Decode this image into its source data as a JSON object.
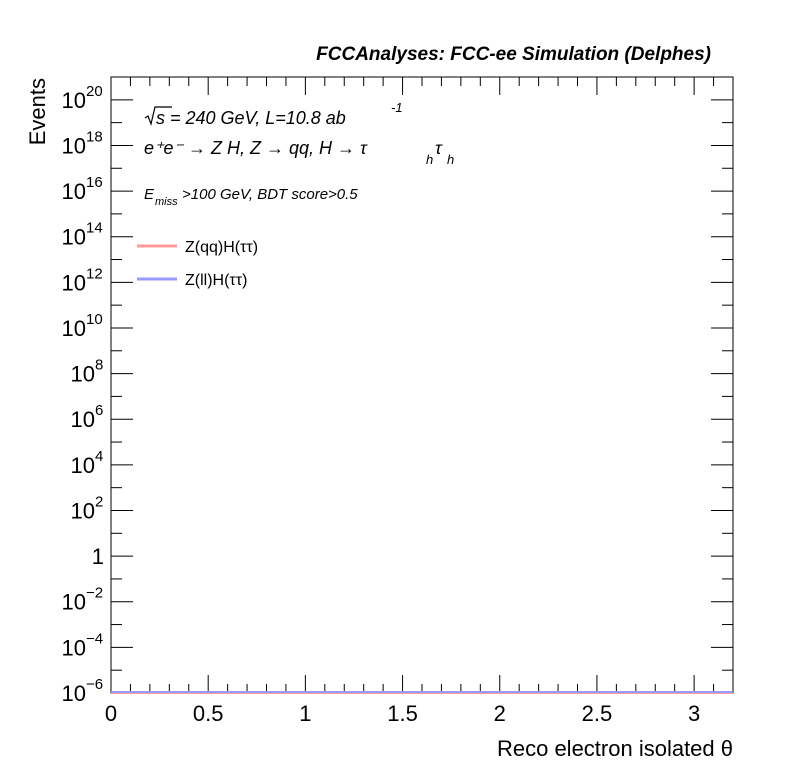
{
  "header": {
    "title": "FCCAnalyses: FCC-ee Simulation (Delphes)"
  },
  "annotations": {
    "line1_sqrt": "s",
    "line1_rest": " = 240 GeV, L=10.8 ab",
    "line1_exp": "-1",
    "line2": "e⁺e⁻ → Z H, Z  → qq, H  → τ",
    "line2_sub1": "h",
    "line2_tau": "τ",
    "line2_sub2": "h",
    "line3_E": "E",
    "line3_sub": "miss",
    "line3_rest": ">100 GeV, BDT score>0.5"
  },
  "chart_data": {
    "type": "line",
    "title": "FCCAnalyses: FCC-ee Simulation (Delphes)",
    "xlabel": "Reco electron isolated θ",
    "ylabel": "Events",
    "xlim": [
      0,
      3.2
    ],
    "ylim": [
      1e-06,
      1e+21
    ],
    "yscale": "log",
    "x_ticks": [
      {
        "v": 0,
        "label": "0"
      },
      {
        "v": 0.5,
        "label": "0.5"
      },
      {
        "v": 1,
        "label": "1"
      },
      {
        "v": 1.5,
        "label": "1.5"
      },
      {
        "v": 2,
        "label": "2"
      },
      {
        "v": 2.5,
        "label": "2.5"
      },
      {
        "v": 3,
        "label": "3"
      }
    ],
    "y_ticks": [
      {
        "exp": -6,
        "label": "10",
        "sup": "−6"
      },
      {
        "exp": -4,
        "label": "10",
        "sup": "−4"
      },
      {
        "exp": -2,
        "label": "10",
        "sup": "−2"
      },
      {
        "exp": 0,
        "label": "1",
        "sup": ""
      },
      {
        "exp": 2,
        "label": "10",
        "sup": "2"
      },
      {
        "exp": 4,
        "label": "10",
        "sup": "4"
      },
      {
        "exp": 6,
        "label": "10",
        "sup": "6"
      },
      {
        "exp": 8,
        "label": "10",
        "sup": "8"
      },
      {
        "exp": 10,
        "label": "10",
        "sup": "10"
      },
      {
        "exp": 12,
        "label": "10",
        "sup": "12"
      },
      {
        "exp": 14,
        "label": "10",
        "sup": "14"
      },
      {
        "exp": 16,
        "label": "10",
        "sup": "16"
      },
      {
        "exp": 18,
        "label": "10",
        "sup": "18"
      },
      {
        "exp": 20,
        "label": "10",
        "sup": "20"
      }
    ],
    "series": [
      {
        "name": "Z(qq)H(ττ)",
        "color": "#ff9999",
        "x": [
          0,
          3.2
        ],
        "y": [
          1e-06,
          1e-06
        ]
      },
      {
        "name": "Z(ll)H(ττ)",
        "color": "#9999ff",
        "x": [
          0,
          3.2
        ],
        "y": [
          1e-06,
          1e-06
        ]
      }
    ],
    "legend": "top-left",
    "grid": false
  }
}
